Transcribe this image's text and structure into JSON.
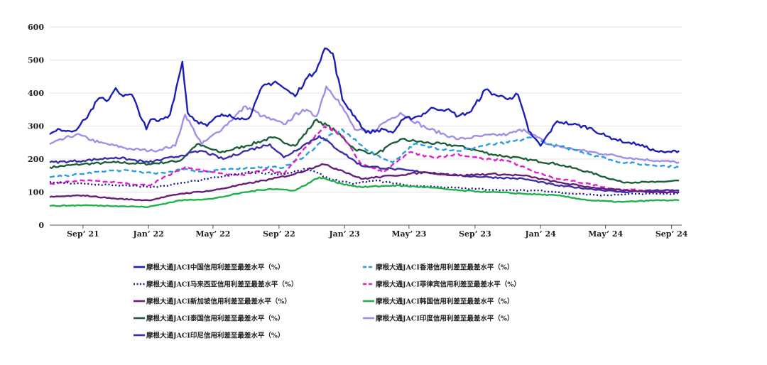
{
  "chart_data": {
    "type": "line",
    "title": "",
    "xlabel": "",
    "ylabel": "",
    "ylim": [
      0,
      600
    ],
    "yticks": [
      0,
      100,
      200,
      300,
      400,
      500,
      600
    ],
    "xlim": [
      "2021-07-01",
      "2024-09-20"
    ],
    "xticks": [
      {
        "date": "2021-09-01",
        "label": "Sep’ 21"
      },
      {
        "date": "2022-01-01",
        "label": "Jan’ 22"
      },
      {
        "date": "2022-05-01",
        "label": "May’ 22"
      },
      {
        "date": "2022-09-01",
        "label": "Sep’ 22"
      },
      {
        "date": "2023-01-01",
        "label": "Jan’ 23"
      },
      {
        "date": "2023-05-01",
        "label": "May’ 23"
      },
      {
        "date": "2023-09-01",
        "label": "Sep’ 23"
      },
      {
        "date": "2024-01-01",
        "label": "Jan’ 24"
      },
      {
        "date": "2024-05-01",
        "label": "May’ 24"
      },
      {
        "date": "2024-09-01",
        "label": "Sep’ 24"
      }
    ],
    "grid": "horizontal",
    "legend_position": "bottom",
    "series": [
      {
        "name": "摩根大通JACI中国信用利差至最差水平（%）",
        "color": "#1c1fb5",
        "style": "solid",
        "x": [
          "2021-07-01",
          "2021-07-20",
          "2021-08-15",
          "2021-09-05",
          "2021-10-01",
          "2021-10-15",
          "2021-11-01",
          "2021-11-15",
          "2021-12-01",
          "2021-12-28",
          "2022-01-05",
          "2022-01-20",
          "2022-02-10",
          "2022-03-05",
          "2022-03-15",
          "2022-04-01",
          "2022-04-20",
          "2022-05-10",
          "2022-06-01",
          "2022-06-20",
          "2022-07-10",
          "2022-08-01",
          "2022-08-25",
          "2022-09-10",
          "2022-10-01",
          "2022-10-20",
          "2022-11-05",
          "2022-11-25",
          "2022-12-10",
          "2022-12-28",
          "2023-01-20",
          "2023-02-10",
          "2023-03-15",
          "2023-04-01",
          "2023-04-20",
          "2023-05-20",
          "2023-06-15",
          "2023-07-10",
          "2023-08-01",
          "2023-08-25",
          "2023-09-20",
          "2023-10-15",
          "2023-11-05",
          "2023-11-20",
          "2023-12-10",
          "2024-01-01",
          "2024-02-01",
          "2024-03-01",
          "2024-04-01",
          "2024-05-01",
          "2024-05-20",
          "2024-06-10",
          "2024-07-01",
          "2024-08-01",
          "2024-08-20",
          "2024-09-15"
        ],
        "y": [
          275,
          290,
          285,
          320,
          385,
          375,
          415,
          390,
          395,
          290,
          320,
          315,
          335,
          495,
          340,
          315,
          300,
          330,
          335,
          320,
          330,
          420,
          435,
          415,
          390,
          440,
          460,
          535,
          520,
          380,
          330,
          280,
          290,
          280,
          320,
          330,
          355,
          350,
          330,
          345,
          410,
          390,
          385,
          395,
          285,
          240,
          315,
          305,
          295,
          270,
          260,
          250,
          245,
          225,
          220,
          225
        ]
      },
      {
        "name": "摩根大通JACI香港信用利差至最差水平（%）",
        "color": "#2b9ee0",
        "style": "dashed",
        "x": [
          "2021-07-01",
          "2021-08-01",
          "2021-09-01",
          "2021-10-15",
          "2021-12-01",
          "2022-01-15",
          "2022-03-10",
          "2022-04-15",
          "2022-06-01",
          "2022-07-20",
          "2022-09-10",
          "2022-10-20",
          "2022-11-25",
          "2022-12-28",
          "2023-01-25",
          "2023-03-01",
          "2023-04-01",
          "2023-05-10",
          "2023-06-15",
          "2023-08-01",
          "2023-09-15",
          "2023-11-01",
          "2023-12-15",
          "2024-01-15",
          "2024-03-01",
          "2024-04-15",
          "2024-05-15",
          "2024-07-01",
          "2024-08-15",
          "2024-09-15"
        ],
        "y": [
          145,
          150,
          155,
          165,
          165,
          155,
          170,
          160,
          170,
          175,
          175,
          210,
          260,
          290,
          250,
          210,
          190,
          245,
          235,
          225,
          240,
          250,
          265,
          245,
          230,
          210,
          195,
          185,
          180,
          175
        ]
      },
      {
        "name": "摩根大通JACI马来西亚信用利差至最差水平（%）",
        "color": "#1a1a8a",
        "style": "dotted",
        "x": [
          "2021-07-01",
          "2021-09-01",
          "2021-11-15",
          "2022-01-15",
          "2022-03-15",
          "2022-05-10",
          "2022-07-10",
          "2022-09-10",
          "2022-10-25",
          "2022-12-05",
          "2023-01-15",
          "2023-03-01",
          "2023-05-01",
          "2023-07-01",
          "2023-09-01",
          "2023-11-01",
          "2024-01-01",
          "2024-03-01",
          "2024-05-01",
          "2024-07-01",
          "2024-09-15"
        ],
        "y": [
          130,
          125,
          120,
          115,
          130,
          145,
          160,
          155,
          170,
          140,
          125,
          135,
          120,
          115,
          110,
          105,
          105,
          95,
          90,
          95,
          95
        ]
      },
      {
        "name": "摩根大通JACI菲律宾信用利差至最差水平（%）",
        "color": "#e020c8",
        "style": "dashed",
        "x": [
          "2021-07-01",
          "2021-09-01",
          "2021-11-01",
          "2022-01-01",
          "2022-03-10",
          "2022-05-01",
          "2022-06-20",
          "2022-08-10",
          "2022-09-10",
          "2022-10-25",
          "2022-11-25",
          "2022-12-28",
          "2023-02-01",
          "2023-03-15",
          "2023-05-01",
          "2023-06-15",
          "2023-08-01",
          "2023-09-15",
          "2023-11-01",
          "2023-12-15",
          "2024-02-01",
          "2024-04-01",
          "2024-05-15",
          "2024-07-15",
          "2024-09-15"
        ],
        "y": [
          125,
          135,
          130,
          120,
          175,
          160,
          150,
          170,
          155,
          245,
          300,
          270,
          185,
          160,
          220,
          205,
          215,
          200,
          195,
          165,
          140,
          125,
          110,
          105,
          100
        ]
      },
      {
        "name": "摩根大通JACI新加坡信用利差至最差水平（%）",
        "color": "#6a1e7c",
        "style": "solid",
        "x": [
          "2021-07-01",
          "2021-09-01",
          "2021-11-01",
          "2022-01-01",
          "2022-03-01",
          "2022-05-01",
          "2022-07-01",
          "2022-08-20",
          "2022-10-01",
          "2022-11-20",
          "2022-12-28",
          "2023-02-01",
          "2023-04-01",
          "2023-06-01",
          "2023-08-01",
          "2023-10-01",
          "2023-12-01",
          "2024-02-01",
          "2024-04-01",
          "2024-06-01",
          "2024-08-01",
          "2024-09-15"
        ],
        "y": [
          85,
          90,
          80,
          75,
          95,
          105,
          125,
          140,
          155,
          185,
          165,
          140,
          150,
          160,
          150,
          155,
          150,
          130,
          115,
          105,
          100,
          100
        ]
      },
      {
        "name": "摩根大通JACI韩国信用利差至最差水平（%）",
        "color": "#22b04a",
        "style": "solid",
        "x": [
          "2021-07-01",
          "2021-09-01",
          "2021-11-01",
          "2022-01-01",
          "2022-03-01",
          "2022-05-01",
          "2022-07-01",
          "2022-08-15",
          "2022-10-01",
          "2022-11-15",
          "2022-12-28",
          "2023-02-01",
          "2023-04-01",
          "2023-06-01",
          "2023-08-01",
          "2023-10-01",
          "2023-12-01",
          "2024-02-01",
          "2024-04-01",
          "2024-06-01",
          "2024-08-01",
          "2024-09-15"
        ],
        "y": [
          58,
          60,
          58,
          55,
          75,
          80,
          100,
          110,
          105,
          145,
          125,
          115,
          120,
          115,
          105,
          100,
          95,
          90,
          75,
          70,
          75,
          75
        ]
      },
      {
        "name": "摩根大通JACI泰国信用利差至最差水平（%）",
        "color": "#1d5e3a",
        "style": "solid",
        "x": [
          "2021-07-01",
          "2021-09-01",
          "2021-11-01",
          "2022-01-01",
          "2022-03-01",
          "2022-04-01",
          "2022-05-15",
          "2022-07-01",
          "2022-08-20",
          "2022-10-01",
          "2022-11-10",
          "2022-12-15",
          "2023-01-20",
          "2023-03-01",
          "2023-04-15",
          "2023-06-01",
          "2023-08-01",
          "2023-10-01",
          "2023-12-01",
          "2024-02-01",
          "2024-04-01",
          "2024-06-01",
          "2024-08-01",
          "2024-09-15"
        ],
        "y": [
          175,
          185,
          190,
          185,
          195,
          245,
          220,
          240,
          265,
          240,
          320,
          285,
          230,
          215,
          260,
          250,
          240,
          215,
          200,
          185,
          160,
          130,
          130,
          135
        ]
      },
      {
        "name": "摩根大通JACI印度信用利差至最差水平（%）",
        "color": "#a08ee8",
        "style": "solid",
        "x": [
          "2021-07-01",
          "2021-08-20",
          "2021-10-01",
          "2021-12-01",
          "2022-01-10",
          "2022-02-20",
          "2022-03-10",
          "2022-04-10",
          "2022-05-20",
          "2022-07-01",
          "2022-08-01",
          "2022-09-10",
          "2022-10-15",
          "2022-11-10",
          "2022-11-28",
          "2022-12-20",
          "2023-01-20",
          "2023-02-20",
          "2023-03-15",
          "2023-04-15",
          "2023-06-01",
          "2023-08-01",
          "2023-09-15",
          "2023-11-01",
          "2023-12-01",
          "2024-01-15",
          "2024-03-01",
          "2024-05-01",
          "2024-07-01",
          "2024-09-15"
        ],
        "y": [
          245,
          275,
          250,
          230,
          225,
          240,
          335,
          245,
          295,
          360,
          330,
          305,
          350,
          330,
          420,
          380,
          290,
          280,
          310,
          340,
          295,
          260,
          270,
          275,
          290,
          245,
          230,
          215,
          200,
          190
        ]
      },
      {
        "name": "摩根大通JACI印尼信用利差至最差水平（%）",
        "color": "#3a2fa6",
        "style": "solid",
        "x": [
          "2021-07-01",
          "2021-09-01",
          "2021-11-01",
          "2022-01-01",
          "2022-03-01",
          "2022-04-10",
          "2022-05-20",
          "2022-07-01",
          "2022-08-15",
          "2022-09-10",
          "2022-10-15",
          "2022-11-15",
          "2022-12-28",
          "2023-02-01",
          "2023-04-01",
          "2023-06-01",
          "2023-08-01",
          "2023-10-01",
          "2023-12-01",
          "2024-02-01",
          "2024-04-01",
          "2024-06-01",
          "2024-08-01",
          "2024-09-15"
        ],
        "y": [
          190,
          195,
          205,
          190,
          210,
          225,
          200,
          225,
          245,
          205,
          240,
          270,
          220,
          180,
          170,
          160,
          150,
          145,
          140,
          120,
          110,
          100,
          105,
          105
        ]
      }
    ]
  }
}
